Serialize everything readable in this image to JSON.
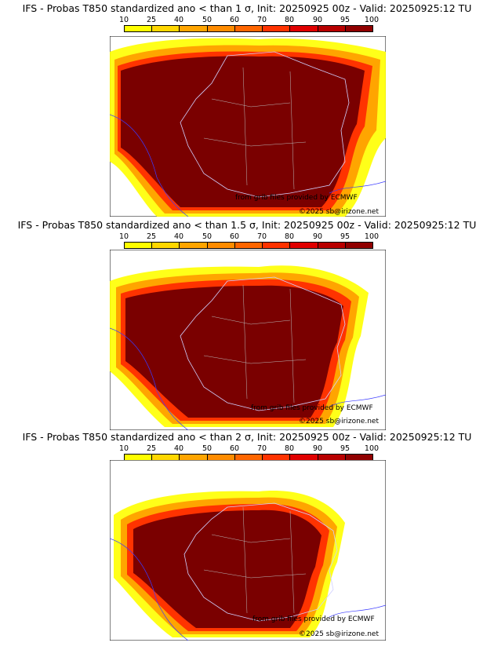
{
  "colors": {
    "legend": [
      "#ffff00",
      "#ffd700",
      "#ffa500",
      "#ff8c00",
      "#ff6600",
      "#ff3300",
      "#e00000",
      "#b80000",
      "#900000",
      "#6e0000"
    ],
    "land_background": "#ffffff",
    "map_max": "#7a0000",
    "borders_country": "#3a3aff",
    "borders_region": "#9a9a9a"
  },
  "legend": {
    "ticks": [
      "10",
      "25",
      "40",
      "50",
      "60",
      "70",
      "80",
      "90",
      "95",
      "100"
    ]
  },
  "panels": [
    {
      "title": "IFS - Probas T850  standardized ano < than 1 σ, Init: 20250925 00z - Valid: 20250925:12 TU",
      "credit_source": "from grib files provided by ECMWF",
      "credit_copyright": "©2025 sb@irizone.net"
    },
    {
      "title": "IFS - Probas T850  standardized ano < than 1.5 σ, Init: 20250925 00z - Valid: 20250925:12 TU",
      "credit_source": "from grib files provided by ECMWF",
      "credit_copyright": "©2025 sb@irizone.net"
    },
    {
      "title": "IFS - Probas T850  standardized ano < than 2 σ, Init: 20250925 00z - Valid: 20250925:12 TU",
      "credit_source": "from grib files provided by ECMWF",
      "credit_copyright": "©2025 sb@irizone.net"
    }
  ]
}
